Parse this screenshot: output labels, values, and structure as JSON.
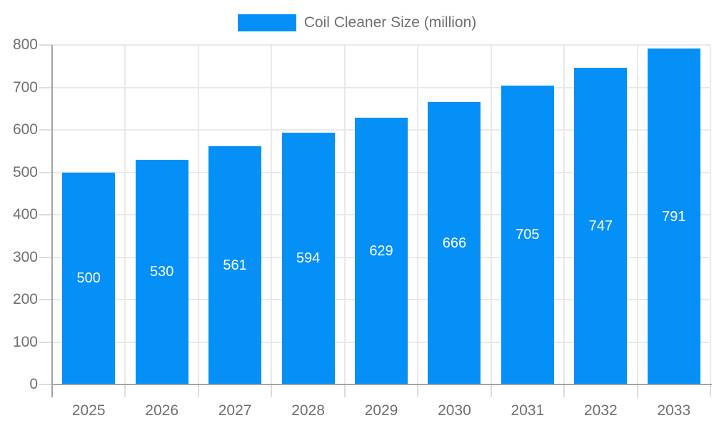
{
  "chart_data": {
    "type": "bar",
    "title": "Coil Cleaner Size (million)",
    "categories": [
      "2025",
      "2026",
      "2027",
      "2028",
      "2029",
      "2030",
      "2031",
      "2032",
      "2033"
    ],
    "values": [
      500,
      530,
      561,
      594,
      629,
      666,
      705,
      747,
      791
    ],
    "series": [
      {
        "name": "Coil Cleaner Size (million)",
        "values": [
          500,
          530,
          561,
          594,
          629,
          666,
          705,
          747,
          791
        ]
      }
    ],
    "xlabel": "",
    "ylabel": "",
    "ylim": [
      0,
      800
    ],
    "yticks": [
      0,
      100,
      200,
      300,
      400,
      500,
      600,
      700,
      800
    ],
    "grid": true,
    "legend_position": "top-center",
    "value_labels": "inside-center-white"
  },
  "colors": {
    "bar": "#0590f8",
    "axis_line": "#a3a3a3",
    "gridline": "#e9e9e9",
    "tick": "#dcdcdc",
    "axis_text": "#6f6f6f",
    "value_label_text": "#ffffff",
    "background": "#ffffff"
  }
}
